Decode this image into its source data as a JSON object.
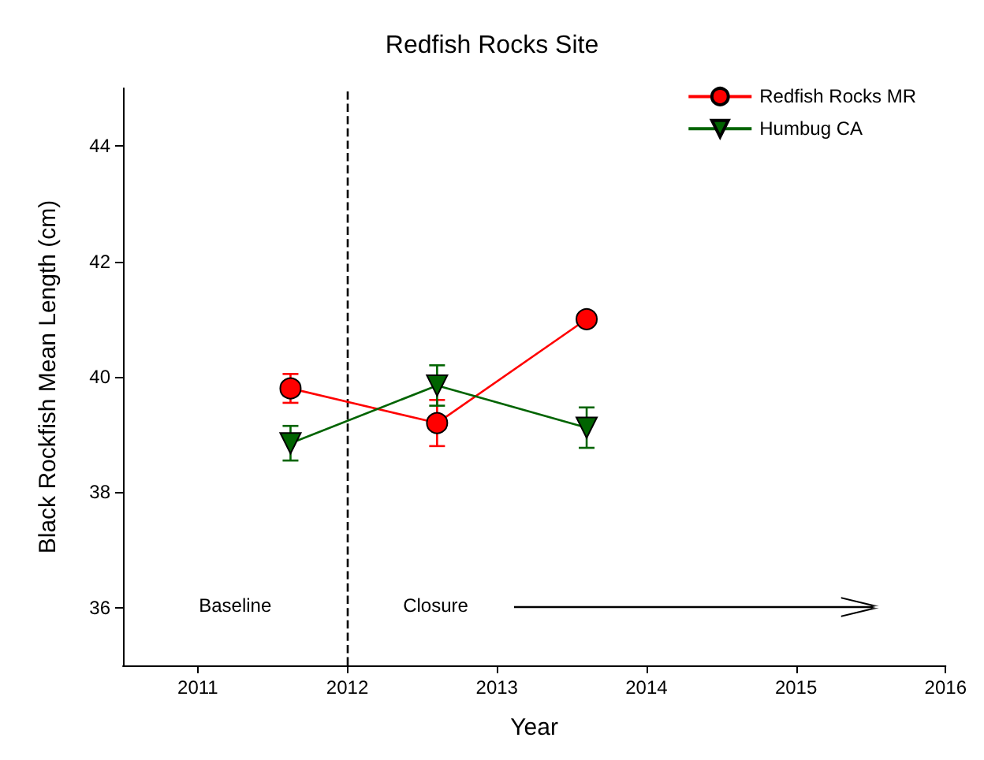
{
  "chart_data": {
    "type": "line",
    "title": "Redfish Rocks Site",
    "xlabel": "Year",
    "ylabel": "Black Rockfish Mean Length (cm)",
    "xlim": [
      2010.5,
      2016
    ],
    "xticks": [
      2011,
      2012,
      2013,
      2014,
      2015,
      2016
    ],
    "ylim": [
      35,
      45
    ],
    "yticks": [
      36,
      38,
      40,
      42,
      44
    ],
    "x": [
      2011.62,
      2012.6,
      2013.6
    ],
    "series": [
      {
        "name": "Redfish Rocks MR",
        "color": "#ff0000",
        "marker": "circle",
        "values": [
          39.8,
          39.2,
          41.0
        ],
        "errors": [
          0.25,
          0.4,
          0.1
        ]
      },
      {
        "name": "Humbug CA",
        "color": "#006400",
        "marker": "triangle",
        "values": [
          38.85,
          39.85,
          39.12
        ],
        "errors": [
          0.3,
          0.35,
          0.35
        ]
      }
    ],
    "ref_lines": [
      {
        "axis": "x",
        "value": 2012,
        "color": "#000000",
        "line_style": "dashed"
      }
    ],
    "annotations": [
      "Baseline",
      "Closure"
    ],
    "legend": "top right",
    "grid": false
  }
}
